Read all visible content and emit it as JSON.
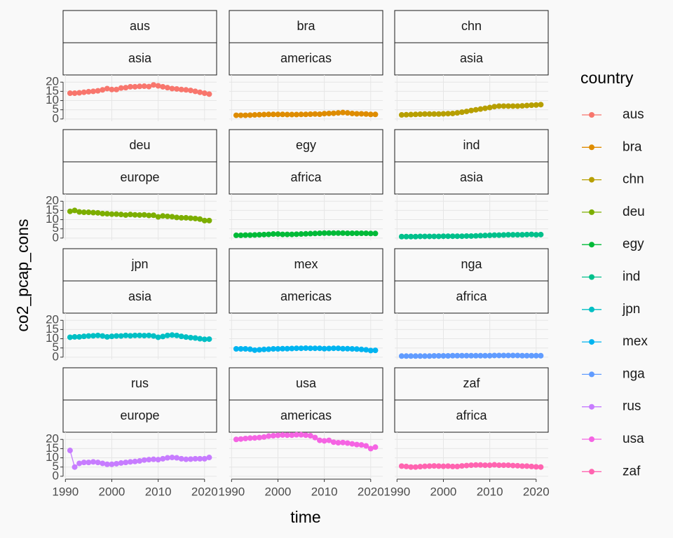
{
  "chart_data": {
    "type": "line",
    "xlabel": "time",
    "ylabel": "co2_pcap_cons",
    "legend_title": "country",
    "legend": "right",
    "grid": true,
    "x": [
      1991,
      1992,
      1993,
      1994,
      1995,
      1996,
      1997,
      1998,
      1999,
      2000,
      2001,
      2002,
      2003,
      2004,
      2005,
      2006,
      2007,
      2008,
      2009,
      2010,
      2011,
      2012,
      2013,
      2014,
      2015,
      2016,
      2017,
      2018,
      2019,
      2020,
      2021
    ],
    "xlim": [
      1989.5,
      2022.6
    ],
    "xticks": [
      1990,
      2000,
      2010,
      2020
    ],
    "ylim": [
      -1.2,
      23.9
    ],
    "yticks": [
      0,
      5,
      10,
      15,
      20
    ],
    "series": [
      {
        "name": "aus",
        "region": "asia",
        "color": "#F8766D",
        "values": [
          14,
          14,
          14.2,
          14.5,
          14.8,
          15,
          15.3,
          15.8,
          16.5,
          16,
          16,
          16.8,
          17,
          17.5,
          17.5,
          17.7,
          17.8,
          17.6,
          18.5,
          18,
          17.5,
          17,
          16.5,
          16.3,
          16,
          15.8,
          15.5,
          15,
          14.5,
          14,
          13.5
        ]
      },
      {
        "name": "bra",
        "region": "americas",
        "color": "#DE8C00",
        "values": [
          2,
          2,
          2,
          2.1,
          2.2,
          2.3,
          2.4,
          2.5,
          2.5,
          2.5,
          2.5,
          2.4,
          2.4,
          2.4,
          2.5,
          2.5,
          2.6,
          2.7,
          2.6,
          2.9,
          3,
          3.1,
          3.3,
          3.5,
          3.3,
          3,
          2.8,
          2.8,
          2.7,
          2.5,
          2.5
        ]
      },
      {
        "name": "chn",
        "region": "asia",
        "color": "#B79F00",
        "values": [
          2.2,
          2.3,
          2.4,
          2.5,
          2.6,
          2.7,
          2.7,
          2.7,
          2.7,
          2.8,
          2.9,
          3,
          3.3,
          3.7,
          4.1,
          4.6,
          5,
          5.4,
          5.8,
          6.2,
          6.7,
          7,
          7,
          7,
          7,
          7,
          7.1,
          7.3,
          7.5,
          7.6,
          7.8
        ]
      },
      {
        "name": "deu",
        "region": "europe",
        "color": "#7CAE00",
        "values": [
          14.5,
          15,
          14.2,
          14,
          14,
          13.8,
          13.7,
          13.3,
          13.2,
          13,
          13,
          12.8,
          12.5,
          12.8,
          12.6,
          12.5,
          12.6,
          12.3,
          12.4,
          11.5,
          12,
          11.8,
          11.6,
          11.2,
          11,
          11,
          10.8,
          10.6,
          10.3,
          9.5,
          9.5
        ]
      },
      {
        "name": "egy",
        "region": "africa",
        "color": "#00BA38",
        "values": [
          1.5,
          1.5,
          1.6,
          1.6,
          1.7,
          1.8,
          1.9,
          2,
          2.2,
          2.2,
          2,
          2,
          2,
          2.1,
          2.2,
          2.3,
          2.4,
          2.5,
          2.6,
          2.7,
          2.7,
          2.7,
          2.7,
          2.7,
          2.6,
          2.6,
          2.6,
          2.6,
          2.6,
          2.5,
          2.5
        ]
      },
      {
        "name": "ind",
        "region": "asia",
        "color": "#00C08B",
        "values": [
          0.8,
          0.8,
          0.8,
          0.8,
          0.9,
          0.9,
          0.9,
          0.9,
          0.9,
          1,
          1,
          1,
          1,
          1,
          1.1,
          1.1,
          1.2,
          1.3,
          1.4,
          1.5,
          1.6,
          1.6,
          1.7,
          1.8,
          1.8,
          1.8,
          1.8,
          1.9,
          2,
          1.8,
          1.9
        ]
      },
      {
        "name": "jpn",
        "region": "asia",
        "color": "#00BFC4",
        "values": [
          10.8,
          11,
          11,
          11.3,
          11.5,
          11.6,
          11.8,
          11.5,
          11,
          11.3,
          11.5,
          11.5,
          11.8,
          11.6,
          11.8,
          11.8,
          11.7,
          11.8,
          11.5,
          10.8,
          11.2,
          11.8,
          12,
          11.8,
          11.3,
          10.9,
          10.6,
          10.4,
          10,
          9.7,
          9.8
        ]
      },
      {
        "name": "mex",
        "region": "americas",
        "color": "#00B4F0",
        "values": [
          4.5,
          4.5,
          4.5,
          4.3,
          3.8,
          4,
          4.2,
          4.3,
          4.5,
          4.5,
          4.6,
          4.6,
          4.7,
          4.8,
          4.8,
          4.9,
          4.8,
          4.8,
          4.8,
          4.6,
          4.7,
          4.8,
          4.8,
          4.6,
          4.6,
          4.5,
          4.4,
          4.2,
          4,
          3.6,
          3.7
        ]
      },
      {
        "name": "nga",
        "region": "africa",
        "color": "#619CFF",
        "values": [
          0.6,
          0.6,
          0.6,
          0.6,
          0.6,
          0.6,
          0.6,
          0.7,
          0.7,
          0.7,
          0.7,
          0.8,
          0.8,
          0.8,
          0.8,
          0.8,
          0.8,
          0.8,
          0.8,
          0.8,
          0.9,
          0.9,
          0.9,
          0.9,
          0.9,
          0.9,
          0.8,
          0.8,
          0.8,
          0.8,
          0.8
        ]
      },
      {
        "name": "rus",
        "region": "europe",
        "color": "#C77CFF",
        "values": [
          14,
          5,
          7,
          7.5,
          7.5,
          7.8,
          7.5,
          7,
          6.5,
          6.5,
          6.8,
          7.2,
          7.5,
          7.8,
          8,
          8.3,
          8.8,
          9,
          9.2,
          9,
          9.5,
          10,
          10.2,
          10,
          9.5,
          9.2,
          9.3,
          9.5,
          9.5,
          9.5,
          10.2
        ]
      },
      {
        "name": "usa",
        "region": "americas",
        "color": "#F564E3",
        "values": [
          20,
          20.2,
          20.5,
          20.7,
          20.8,
          21,
          21.3,
          21.8,
          22,
          22.2,
          22.4,
          22.3,
          22.3,
          22.5,
          22.5,
          22.3,
          22,
          21,
          19.5,
          19.2,
          19.5,
          18.5,
          18.2,
          18.3,
          18,
          17.6,
          17.2,
          17,
          16.5,
          15,
          15.8
        ]
      },
      {
        "name": "zaf",
        "region": "africa",
        "color": "#FF64B0",
        "values": [
          5.5,
          5.3,
          5,
          5,
          5.2,
          5.4,
          5.5,
          5.6,
          5.5,
          5.4,
          5.5,
          5.3,
          5.3,
          5.6,
          5.8,
          6,
          6.1,
          6.1,
          6,
          6,
          6.2,
          6,
          6,
          6,
          5.8,
          5.7,
          5.5,
          5.5,
          5.3,
          5.1,
          5
        ]
      }
    ]
  }
}
